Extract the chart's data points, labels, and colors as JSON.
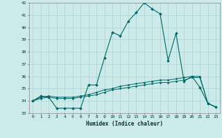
{
  "xlabel": "Humidex (Indice chaleur)",
  "xlim": [
    -0.5,
    23.5
  ],
  "ylim": [
    33,
    42
  ],
  "yticks": [
    33,
    34,
    35,
    36,
    37,
    38,
    39,
    40,
    41,
    42
  ],
  "xticks": [
    0,
    1,
    2,
    3,
    4,
    5,
    6,
    7,
    8,
    9,
    10,
    11,
    12,
    13,
    14,
    15,
    16,
    17,
    18,
    19,
    20,
    21,
    22,
    23
  ],
  "background_color": "#cceaea",
  "grid_color": "#aad4d4",
  "line_color": "#006666",
  "curve1_x": [
    0,
    1,
    2,
    3,
    4,
    5,
    6,
    7,
    8,
    9,
    10,
    11,
    12,
    13,
    14,
    15,
    16,
    17,
    18,
    19,
    20,
    21,
    22,
    23
  ],
  "curve1_y": [
    34.0,
    34.4,
    34.3,
    33.4,
    33.4,
    33.4,
    33.4,
    35.3,
    35.3,
    37.5,
    39.6,
    39.3,
    40.5,
    41.2,
    42.0,
    41.5,
    41.1,
    37.3,
    39.5,
    35.6,
    36.0,
    35.1,
    33.8,
    33.5
  ],
  "curve2_x": [
    0,
    1,
    2,
    3,
    4,
    5,
    6,
    7,
    8,
    9,
    10,
    11,
    12,
    13,
    14,
    15,
    16,
    17,
    18,
    19,
    20,
    21,
    22,
    23
  ],
  "curve2_y": [
    34.0,
    34.3,
    34.4,
    34.3,
    34.3,
    34.3,
    34.4,
    34.5,
    34.7,
    34.9,
    35.0,
    35.2,
    35.3,
    35.4,
    35.5,
    35.6,
    35.7,
    35.7,
    35.8,
    35.9,
    36.0,
    36.0,
    33.8,
    33.5
  ],
  "curve3_x": [
    0,
    1,
    2,
    3,
    4,
    5,
    6,
    7,
    8,
    9,
    10,
    11,
    12,
    13,
    14,
    15,
    16,
    17,
    18,
    19,
    20,
    21,
    22,
    23
  ],
  "curve3_y": [
    34.0,
    34.2,
    34.3,
    34.2,
    34.2,
    34.2,
    34.3,
    34.4,
    34.5,
    34.7,
    34.9,
    35.0,
    35.1,
    35.2,
    35.3,
    35.4,
    35.5,
    35.5,
    35.6,
    35.7,
    35.9,
    35.9,
    33.8,
    33.5
  ]
}
